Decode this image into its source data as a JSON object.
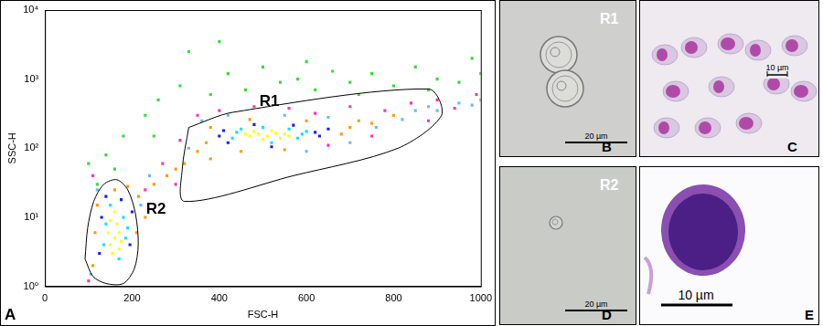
{
  "chart_data": {
    "type": "scatter",
    "panel_label": "A",
    "x_label": "FSC-H",
    "y_label": "SSC-H",
    "xlim": [
      0,
      1000
    ],
    "xticks": [
      0,
      200,
      400,
      600,
      800,
      1000
    ],
    "ylim": [
      1,
      10000
    ],
    "yticks": [
      {
        "value": 1,
        "label": "10⁰"
      },
      {
        "value": 10,
        "label": "10¹"
      },
      {
        "value": 100,
        "label": "10²"
      },
      {
        "value": 1000,
        "label": "10³"
      },
      {
        "value": 10000,
        "label": "10⁴"
      }
    ],
    "log": "y",
    "grid": false,
    "marker": "square",
    "series": [
      {
        "color": "#33dd33",
        "points": [
          [
            100,
            60
          ],
          [
            140,
            80
          ],
          [
            180,
            150
          ],
          [
            230,
            300
          ],
          [
            260,
            500
          ],
          [
            310,
            800
          ],
          [
            330,
            2500
          ],
          [
            380,
            600
          ],
          [
            420,
            1200
          ],
          [
            460,
            700
          ],
          [
            500,
            1500
          ],
          [
            540,
            900
          ],
          [
            580,
            1000
          ],
          [
            620,
            700
          ],
          [
            660,
            1300
          ],
          [
            700,
            900
          ],
          [
            750,
            1200
          ],
          [
            800,
            800
          ],
          [
            850,
            1500
          ],
          [
            900,
            1000
          ],
          [
            950,
            900
          ],
          [
            1000,
            1200
          ],
          [
            980,
            2000
          ],
          [
            720,
            600
          ],
          [
            600,
            1800
          ],
          [
            250,
            150
          ],
          [
            160,
            50
          ],
          [
            120,
            30
          ],
          [
            880,
            700
          ],
          [
            400,
            3500
          ]
        ]
      },
      {
        "color": "#ff33aa",
        "points": [
          [
            100,
            1.2
          ],
          [
            110,
            40
          ],
          [
            230,
            25
          ],
          [
            270,
            60
          ],
          [
            310,
            130
          ],
          [
            350,
            300
          ],
          [
            400,
            350
          ],
          [
            480,
            400
          ],
          [
            560,
            380
          ],
          [
            620,
            320
          ],
          [
            700,
            400
          ],
          [
            780,
            350
          ],
          [
            840,
            450
          ],
          [
            900,
            500
          ],
          [
            940,
            380
          ],
          [
            990,
            600
          ],
          [
            880,
            250
          ],
          [
            750,
            150
          ],
          [
            650,
            110
          ],
          [
            300,
            30
          ]
        ]
      },
      {
        "color": "#66bbff",
        "points": [
          [
            105,
            1.5
          ],
          [
            120,
            25
          ],
          [
            220,
            15
          ],
          [
            240,
            40
          ],
          [
            330,
            100
          ],
          [
            360,
            250
          ],
          [
            420,
            300
          ],
          [
            550,
            300
          ],
          [
            650,
            280
          ],
          [
            700,
            120
          ],
          [
            760,
            200
          ],
          [
            820,
            260
          ],
          [
            850,
            350
          ],
          [
            880,
            400
          ],
          [
            900,
            350
          ],
          [
            950,
            450
          ],
          [
            980,
            420
          ],
          [
            1000,
            500
          ],
          [
            600,
            90
          ]
        ]
      },
      {
        "color": "#ff9900",
        "points": [
          [
            110,
            2
          ],
          [
            115,
            6
          ],
          [
            120,
            15
          ],
          [
            210,
            6
          ],
          [
            215,
            20
          ],
          [
            160,
            25
          ],
          [
            190,
            28
          ],
          [
            230,
            10
          ],
          [
            250,
            30
          ],
          [
            280,
            40
          ],
          [
            320,
            60
          ],
          [
            350,
            90
          ],
          [
            370,
            120
          ],
          [
            380,
            200
          ],
          [
            680,
            160
          ],
          [
            700,
            200
          ],
          [
            720,
            250
          ],
          [
            450,
            90
          ],
          [
            550,
            95
          ],
          [
            600,
            250
          ],
          [
            470,
            260
          ],
          [
            750,
            230
          ],
          [
            800,
            300
          ],
          [
            380,
            70
          ],
          [
            300,
            50
          ]
        ]
      },
      {
        "color": "#1a1aff",
        "points": [
          [
            125,
            3
          ],
          [
            130,
            10
          ],
          [
            195,
            4
          ],
          [
            200,
            12
          ],
          [
            140,
            20
          ],
          [
            175,
            18
          ],
          [
            400,
            150
          ],
          [
            410,
            180
          ],
          [
            620,
            170
          ],
          [
            630,
            150
          ],
          [
            520,
            105
          ],
          [
            480,
            220
          ],
          [
            570,
            215
          ],
          [
            420,
            120
          ],
          [
            650,
            190
          ]
        ]
      },
      {
        "color": "#00e5ff",
        "points": [
          [
            135,
            4
          ],
          [
            140,
            8
          ],
          [
            185,
            5
          ],
          [
            180,
            10
          ],
          [
            150,
            15
          ],
          [
            170,
            2.5
          ],
          [
            190,
            7
          ],
          [
            430,
            140
          ],
          [
            440,
            170
          ],
          [
            590,
            160
          ],
          [
            580,
            140
          ],
          [
            520,
            120
          ],
          [
            500,
            200
          ],
          [
            560,
            190
          ],
          [
            450,
            190
          ],
          [
            600,
            175
          ]
        ]
      },
      {
        "color": "#ffff00",
        "points": [
          [
            150,
            4
          ],
          [
            160,
            5
          ],
          [
            170,
            6
          ],
          [
            155,
            3
          ],
          [
            165,
            8
          ],
          [
            175,
            4.5
          ],
          [
            145,
            6
          ],
          [
            160,
            12
          ],
          [
            150,
            9
          ],
          [
            170,
            3.5
          ],
          [
            470,
            150
          ],
          [
            490,
            160
          ],
          [
            510,
            150
          ],
          [
            530,
            165
          ],
          [
            550,
            160
          ],
          [
            500,
            135
          ],
          [
            520,
            180
          ],
          [
            480,
            175
          ],
          [
            540,
            140
          ],
          [
            560,
            150
          ],
          [
            460,
            160
          ]
        ]
      }
    ],
    "gates": [
      {
        "name": "R1",
        "label_at": [
          515,
          470
        ],
        "points": [
          [
            330,
            200
          ],
          [
            430,
            330
          ],
          [
            880,
            720
          ],
          [
            910,
            300
          ],
          [
            810,
            100
          ],
          [
            570,
            40
          ],
          [
            320,
            17
          ],
          [
            315,
            50
          ],
          [
            330,
            200
          ]
        ]
      },
      {
        "name": "R2",
        "label_at": [
          255,
          13
        ],
        "points": [
          [
            92,
            2.5
          ],
          [
            98,
            7
          ],
          [
            112,
            17
          ],
          [
            135,
            30
          ],
          [
            165,
            35
          ],
          [
            190,
            25
          ],
          [
            208,
            11
          ],
          [
            214,
            4
          ],
          [
            205,
            1.8
          ],
          [
            180,
            1.1
          ],
          [
            140,
            1.1
          ],
          [
            110,
            1.4
          ],
          [
            92,
            2.5
          ]
        ]
      }
    ]
  },
  "images": [
    {
      "letter": "B",
      "gate": "R1",
      "scale_bar": "20 µm"
    },
    {
      "letter": "C",
      "scale_bar": "10 µm"
    },
    {
      "letter": "D",
      "gate": "R2",
      "scale_bar": "20 µm"
    },
    {
      "letter": "E",
      "scale_bar": "10 µm"
    }
  ]
}
